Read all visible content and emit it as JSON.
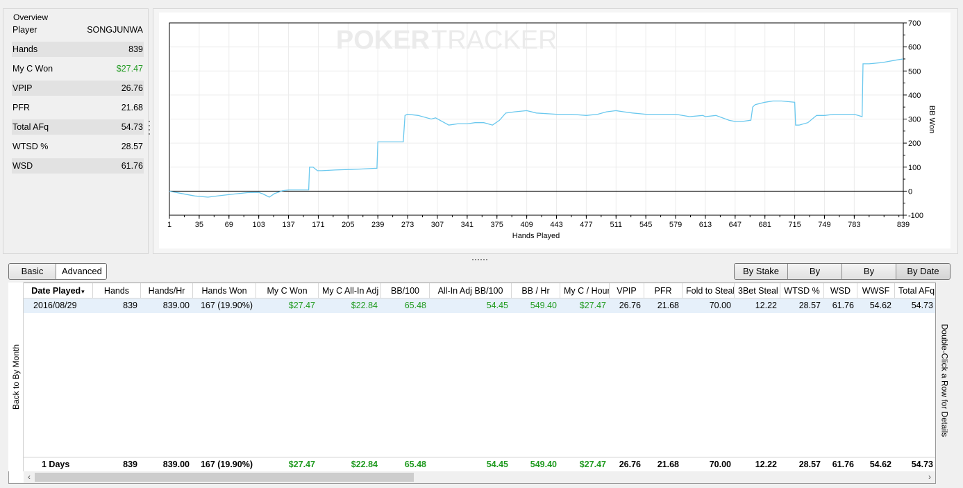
{
  "overview": {
    "title": "Overview",
    "rows": [
      {
        "label": "Player",
        "value": "SONGJUNWA",
        "green": false
      },
      {
        "label": "Hands",
        "value": "839",
        "green": false
      },
      {
        "label": "My C Won",
        "value": "$27.47",
        "green": true
      },
      {
        "label": "VPIP",
        "value": "26.76",
        "green": false
      },
      {
        "label": "PFR",
        "value": "21.68",
        "green": false
      },
      {
        "label": "Total AFq",
        "value": "54.73",
        "green": false
      },
      {
        "label": "WTSD %",
        "value": "28.57",
        "green": false
      },
      {
        "label": "WSD",
        "value": "61.76",
        "green": false
      }
    ]
  },
  "chart": {
    "watermark_left": "POKER",
    "watermark_right": "TRACKER",
    "xlabel": "Hands Played",
    "ylabel": "BB Won",
    "x_ticks": [
      "1",
      "35",
      "69",
      "103",
      "137",
      "171",
      "205",
      "239",
      "273",
      "307",
      "341",
      "375",
      "409",
      "443",
      "477",
      "511",
      "545",
      "579",
      "613",
      "647",
      "681",
      "715",
      "749",
      "783",
      "839"
    ],
    "y_ticks": [
      "700",
      "600",
      "500",
      "400",
      "300",
      "200",
      "100",
      "0",
      "-100"
    ],
    "line_color": "#6ac8ee"
  },
  "chart_data": {
    "type": "line",
    "xlabel": "Hands Played",
    "ylabel": "BB Won",
    "xlim": [
      1,
      839
    ],
    "ylim": [
      -100,
      700
    ],
    "grid": true,
    "series": [
      {
        "x": [
          1,
          15,
          30,
          45,
          60,
          75,
          90,
          103,
          108,
          115,
          121,
          125,
          130,
          137,
          160,
          161,
          165,
          170,
          175,
          190,
          205,
          220,
          235,
          238,
          239,
          241,
          250,
          268,
          270,
          273,
          285,
          300,
          305,
          320,
          330,
          341,
          350,
          360,
          370,
          378,
          385,
          395,
          409,
          420,
          443,
          460,
          477,
          490,
          500,
          511,
          520,
          530,
          545,
          560,
          579,
          595,
          610,
          613,
          625,
          640,
          647,
          655,
          665,
          667,
          670,
          681,
          690,
          700,
          715,
          716,
          720,
          730,
          740,
          749,
          760,
          770,
          783,
          792,
          793,
          800,
          815,
          830,
          839
        ],
        "y": [
          0,
          -10,
          -20,
          -25,
          -18,
          -12,
          -6,
          -5,
          -12,
          -25,
          -10,
          -5,
          2,
          5,
          5,
          100,
          100,
          85,
          85,
          88,
          90,
          92,
          95,
          95,
          205,
          205,
          205,
          205,
          315,
          320,
          315,
          300,
          305,
          275,
          280,
          280,
          285,
          285,
          275,
          295,
          325,
          330,
          335,
          325,
          320,
          320,
          315,
          320,
          330,
          335,
          330,
          325,
          320,
          320,
          320,
          310,
          315,
          310,
          315,
          295,
          290,
          290,
          295,
          350,
          360,
          370,
          375,
          375,
          370,
          275,
          275,
          285,
          315,
          315,
          320,
          320,
          320,
          310,
          530,
          530,
          535,
          545,
          550
        ]
      }
    ]
  },
  "toolbar_left": {
    "basic_label": "Basic",
    "advanced_label": "Advanced"
  },
  "toolbar_right": {
    "by_stake_label": "By Stake",
    "by_position_label": "By Position",
    "by_session_label": "By Session",
    "by_date_label": "By Date"
  },
  "side": {
    "back_label": "Back to By Month",
    "hint_label": "Double-Click a Row for Details"
  },
  "table": {
    "columns": [
      {
        "label": "Date Played",
        "arrow": "▾"
      },
      {
        "label": "Hands"
      },
      {
        "label": "Hands/Hr"
      },
      {
        "label": "Hands Won"
      },
      {
        "label": "My C Won"
      },
      {
        "label": "My C All-In Adj"
      },
      {
        "label": "BB/100"
      },
      {
        "label": "All-In Adj BB/100"
      },
      {
        "label": "BB / Hr"
      },
      {
        "label": "My C / Hour"
      },
      {
        "label": "VPIP"
      },
      {
        "label": "PFR"
      },
      {
        "label": "Fold to Steal"
      },
      {
        "label": "3Bet Steal"
      },
      {
        "label": "WTSD %"
      },
      {
        "label": "WSD"
      },
      {
        "label": "WWSF"
      },
      {
        "label": "Total AFq"
      }
    ],
    "rows": [
      [
        "2016/08/29",
        "839",
        "839.00",
        "167 (19.90%)",
        "$27.47",
        "$22.84",
        "65.48",
        "54.45",
        "549.40",
        "$27.47",
        "26.76",
        "21.68",
        "70.00",
        "12.22",
        "28.57",
        "61.76",
        "54.62",
        "54.73"
      ]
    ],
    "totals": [
      "1 Days",
      "839",
      "839.00",
      "167 (19.90%)",
      "$27.47",
      "$22.84",
      "65.48",
      "54.45",
      "549.40",
      "$27.47",
      "26.76",
      "21.68",
      "70.00",
      "12.22",
      "28.57",
      "61.76",
      "54.62",
      "54.73"
    ],
    "green_columns": [
      4,
      5,
      6,
      7,
      8,
      9
    ]
  },
  "scroll": {
    "left_arrow": "‹",
    "right_arrow": "›"
  }
}
